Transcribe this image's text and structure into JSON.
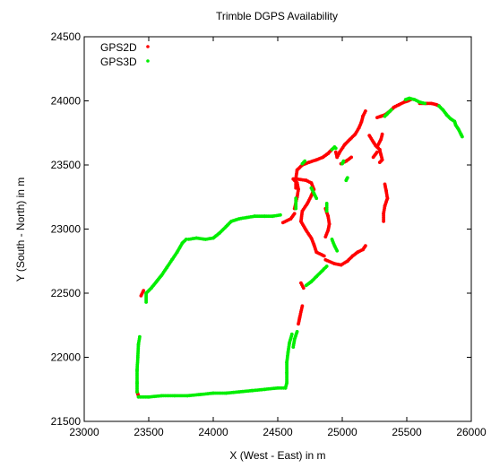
{
  "chart_data": {
    "type": "scatter",
    "title": "Trimble DGPS Availability",
    "xlabel": "X (West - East) in m",
    "ylabel": "Y (South - North) in m",
    "xlim": [
      23000,
      26000
    ],
    "ylim": [
      21500,
      24500
    ],
    "xticks": [
      23000,
      23500,
      24000,
      24500,
      25000,
      25500,
      26000
    ],
    "yticks": [
      21500,
      22000,
      22500,
      23000,
      23500,
      24000,
      24500
    ],
    "grid": false,
    "legend_position": "top-left",
    "series": [
      {
        "name": "GPS2D",
        "color": "#ff0000",
        "segments": [
          [
            [
              23410,
              21730
            ],
            [
              23420,
              21700
            ]
          ],
          [
            [
              23440,
              22480
            ],
            [
              23460,
              22520
            ]
          ],
          [
            [
              24540,
              23050
            ],
            [
              24600,
              23080
            ],
            [
              24630,
              23120
            ]
          ],
          [
            [
              24630,
              23160
            ],
            [
              24650,
              23250
            ],
            [
              24660,
              23310
            ],
            [
              24650,
              23360
            ],
            [
              24620,
              23390
            ],
            [
              24650,
              23390
            ],
            [
              24720,
              23380
            ],
            [
              24760,
              23360
            ],
            [
              24780,
              23310
            ],
            [
              24760,
              23260
            ],
            [
              24730,
              23200
            ],
            [
              24690,
              23140
            ],
            [
              24680,
              23060
            ],
            [
              24720,
              22990
            ],
            [
              24760,
              22930
            ],
            [
              24780,
              22880
            ],
            [
              24800,
              22820
            ],
            [
              24860,
              22790
            ]
          ],
          [
            [
              24870,
              22760
            ],
            [
              24940,
              22730
            ],
            [
              24990,
              22720
            ],
            [
              25040,
              22750
            ],
            [
              25080,
              22790
            ],
            [
              25120,
              22820
            ],
            [
              25160,
              22840
            ],
            [
              25180,
              22870
            ]
          ],
          [
            [
              24680,
              22580
            ],
            [
              24700,
              22540
            ]
          ],
          [
            [
              24690,
              22400
            ],
            [
              24670,
              22310
            ],
            [
              24660,
              22260
            ]
          ],
          [
            [
              24640,
              23320
            ],
            [
              24640,
              23390
            ],
            [
              24650,
              23460
            ],
            [
              24690,
              23500
            ],
            [
              24740,
              23520
            ],
            [
              24800,
              23540
            ],
            [
              24850,
              23560
            ],
            [
              24890,
              23590
            ],
            [
              24920,
              23620
            ]
          ],
          [
            [
              24870,
              23160
            ],
            [
              24890,
              23100
            ],
            [
              24900,
              23040
            ],
            [
              24890,
              22990
            ],
            [
              24870,
              22940
            ]
          ],
          [
            [
              24950,
              23600
            ],
            [
              24960,
              23560
            ],
            [
              24980,
              23600
            ],
            [
              25020,
              23660
            ],
            [
              25060,
              23700
            ],
            [
              25100,
              23740
            ],
            [
              25130,
              23790
            ],
            [
              25150,
              23840
            ],
            [
              25160,
              23880
            ],
            [
              25180,
              23920
            ]
          ],
          [
            [
              24990,
              23510
            ],
            [
              25030,
              23530
            ],
            [
              25070,
              23560
            ]
          ],
          [
            [
              25210,
              23730
            ],
            [
              25240,
              23680
            ],
            [
              25260,
              23650
            ],
            [
              25290,
              23620
            ],
            [
              25300,
              23580
            ],
            [
              25310,
              23540
            ],
            [
              25290,
              23520
            ]
          ],
          [
            [
              25270,
              23640
            ],
            [
              25300,
              23700
            ],
            [
              25310,
              23740
            ]
          ],
          [
            [
              25240,
              23560
            ],
            [
              25270,
              23600
            ]
          ],
          [
            [
              25270,
              23870
            ],
            [
              25300,
              23880
            ],
            [
              25330,
              23890
            ],
            [
              25370,
              23920
            ],
            [
              25400,
              23950
            ],
            [
              25440,
              23970
            ],
            [
              25480,
              23990
            ],
            [
              25510,
              24000
            ],
            [
              25530,
              24010
            ]
          ],
          [
            [
              25600,
              23980
            ],
            [
              25650,
              23980
            ],
            [
              25690,
              23980
            ],
            [
              25730,
              23970
            ],
            [
              25750,
              23960
            ]
          ],
          [
            [
              25330,
              23350
            ],
            [
              25340,
              23300
            ],
            [
              25350,
              23240
            ],
            [
              25330,
              23180
            ],
            [
              25320,
              23120
            ],
            [
              25320,
              23060
            ]
          ]
        ]
      },
      {
        "name": "GPS3D",
        "color": "#00ee00",
        "segments": [
          [
            [
              23420,
              21690
            ],
            [
              23500,
              21690
            ],
            [
              23600,
              21700
            ],
            [
              23700,
              21700
            ],
            [
              23800,
              21700
            ],
            [
              23900,
              21710
            ],
            [
              24000,
              21720
            ],
            [
              24100,
              21720
            ],
            [
              24200,
              21730
            ],
            [
              24300,
              21740
            ],
            [
              24400,
              21750
            ],
            [
              24500,
              21760
            ],
            [
              24560,
              21760
            ]
          ],
          [
            [
              24560,
              21760
            ],
            [
              24570,
              21800
            ],
            [
              24570,
              21880
            ],
            [
              24570,
              21960
            ],
            [
              24580,
              22040
            ],
            [
              24590,
              22110
            ],
            [
              24610,
              22180
            ]
          ],
          [
            [
              23410,
              21730
            ],
            [
              23410,
              21800
            ],
            [
              23410,
              21900
            ],
            [
              23415,
              22000
            ],
            [
              23420,
              22100
            ],
            [
              23430,
              22160
            ]
          ],
          [
            [
              23480,
              22430
            ],
            [
              23480,
              22500
            ],
            [
              23520,
              22540
            ],
            [
              23560,
              22590
            ],
            [
              23600,
              22640
            ],
            [
              23640,
              22700
            ],
            [
              23680,
              22760
            ],
            [
              23720,
              22820
            ],
            [
              23760,
              22890
            ],
            [
              23790,
              22920
            ]
          ],
          [
            [
              23810,
              22920
            ],
            [
              23870,
              22930
            ],
            [
              23940,
              22920
            ],
            [
              24000,
              22930
            ],
            [
              24050,
              22970
            ],
            [
              24100,
              23020
            ],
            [
              24140,
              23060
            ],
            [
              24200,
              23080
            ],
            [
              24260,
              23090
            ],
            [
              24320,
              23100
            ],
            [
              24400,
              23100
            ],
            [
              24460,
              23100
            ],
            [
              24520,
              23110
            ]
          ],
          [
            [
              24720,
              22560
            ],
            [
              24760,
              22590
            ],
            [
              24800,
              22630
            ],
            [
              24850,
              22680
            ],
            [
              24880,
              22710
            ]
          ],
          [
            [
              24620,
              22080
            ],
            [
              24630,
              22140
            ],
            [
              24650,
              22200
            ]
          ],
          [
            [
              24640,
              23160
            ],
            [
              24640,
              23240
            ]
          ],
          [
            [
              24760,
              23320
            ],
            [
              24780,
              23280
            ],
            [
              24800,
              23240
            ]
          ],
          [
            [
              24880,
              23200
            ],
            [
              24880,
              23140
            ]
          ],
          [
            [
              24920,
              22920
            ],
            [
              24940,
              22870
            ],
            [
              24960,
              22830
            ]
          ],
          [
            [
              24920,
              23620
            ],
            [
              24940,
              23640
            ],
            [
              24950,
              23630
            ]
          ],
          [
            [
              24690,
              23510
            ],
            [
              24710,
              23530
            ]
          ],
          [
            [
              25000,
              23510
            ],
            [
              25010,
              23530
            ]
          ],
          [
            [
              25330,
              23880
            ],
            [
              25350,
              23900
            ],
            [
              25380,
              23930
            ]
          ],
          [
            [
              25490,
              24010
            ],
            [
              25520,
              24020
            ],
            [
              25560,
              24010
            ],
            [
              25600,
              23990
            ],
            [
              25640,
              23980
            ]
          ],
          [
            [
              25750,
              23960
            ],
            [
              25780,
              23930
            ],
            [
              25810,
              23890
            ],
            [
              25840,
              23860
            ],
            [
              25870,
              23840
            ],
            [
              25880,
              23810
            ],
            [
              25900,
              23780
            ],
            [
              25920,
              23740
            ],
            [
              25930,
              23720
            ]
          ],
          [
            [
              25030,
              23380
            ],
            [
              25040,
              23400
            ]
          ]
        ]
      }
    ]
  }
}
